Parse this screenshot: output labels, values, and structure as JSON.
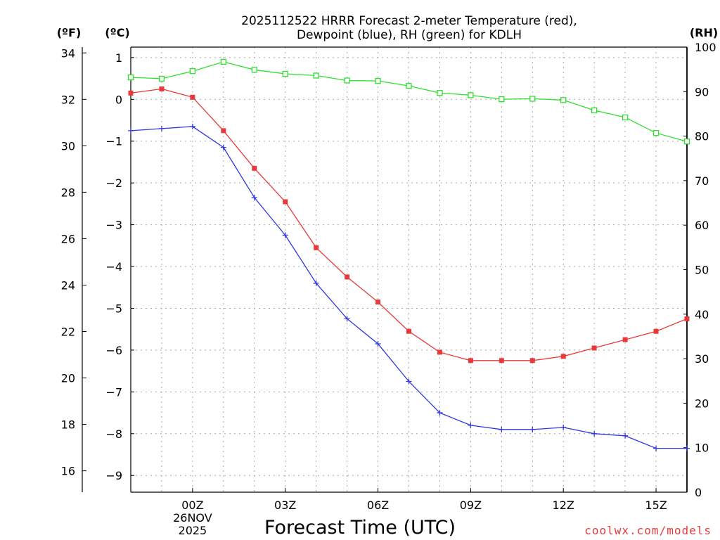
{
  "chart_data": {
    "type": "line",
    "title_lines": [
      "2025112522 HRRR Forecast 2-meter Temperature (red),",
      "Dewpoint (blue), RH (green) for KDLH"
    ],
    "xlabel": "Forecast Time (UTC)",
    "watermark": "coolwx.com/models",
    "left_axis_f": {
      "label": "(ºF)",
      "ticks": [
        16,
        18,
        20,
        22,
        24,
        26,
        28,
        30,
        32,
        34
      ]
    },
    "left_axis_c": {
      "label": "(ºC)",
      "ticks": [
        1,
        0,
        -1,
        -2,
        -3,
        -4,
        -5,
        -6,
        -7,
        -8,
        -9
      ],
      "ylim": [
        -9.4,
        1.25
      ]
    },
    "right_axis_rh": {
      "label": "(RH)",
      "ticks": [
        0,
        10,
        20,
        30,
        40,
        50,
        60,
        70,
        80,
        90,
        100
      ],
      "ylim": [
        0,
        100
      ]
    },
    "x_hours": [
      -2,
      -1,
      0,
      1,
      2,
      3,
      4,
      5,
      6,
      7,
      8,
      9,
      10,
      11,
      12,
      13,
      14,
      15,
      16
    ],
    "x_ticks": [
      {
        "hour": 0,
        "label": "00Z",
        "sub": [
          "26NOV",
          "2025"
        ]
      },
      {
        "hour": 3,
        "label": "03Z"
      },
      {
        "hour": 6,
        "label": "06Z"
      },
      {
        "hour": 9,
        "label": "09Z"
      },
      {
        "hour": 12,
        "label": "12Z"
      },
      {
        "hour": 15,
        "label": "15Z"
      }
    ],
    "series": [
      {
        "name": "2-meter Temperature",
        "unit": "C",
        "color": "#e8393a",
        "marker": "filled-square",
        "values": [
          0.15,
          0.25,
          0.05,
          -0.75,
          -1.65,
          -2.45,
          -3.55,
          -4.25,
          -4.85,
          -5.55,
          -6.05,
          -6.25,
          -6.25,
          -6.25,
          -6.15,
          -5.95,
          -5.75,
          -5.55,
          -5.25
        ]
      },
      {
        "name": "Dewpoint",
        "unit": "C",
        "color": "#2f38e0",
        "marker": "plus",
        "values": [
          -0.75,
          -0.7,
          -0.65,
          -1.15,
          -2.35,
          -3.25,
          -4.4,
          -5.25,
          -5.85,
          -6.75,
          -7.5,
          -7.8,
          -7.9,
          -7.9,
          -7.85,
          -8.0,
          -8.05,
          -8.35,
          -8.35
        ]
      },
      {
        "name": "RH",
        "unit": "%",
        "color": "#2ee02e",
        "marker": "open-square",
        "values": [
          93.2,
          92.9,
          94.6,
          96.7,
          94.9,
          94.0,
          93.6,
          92.5,
          92.4,
          91.3,
          89.7,
          89.2,
          88.3,
          88.4,
          88.1,
          85.8,
          84.2,
          80.7,
          78.8
        ]
      }
    ]
  }
}
